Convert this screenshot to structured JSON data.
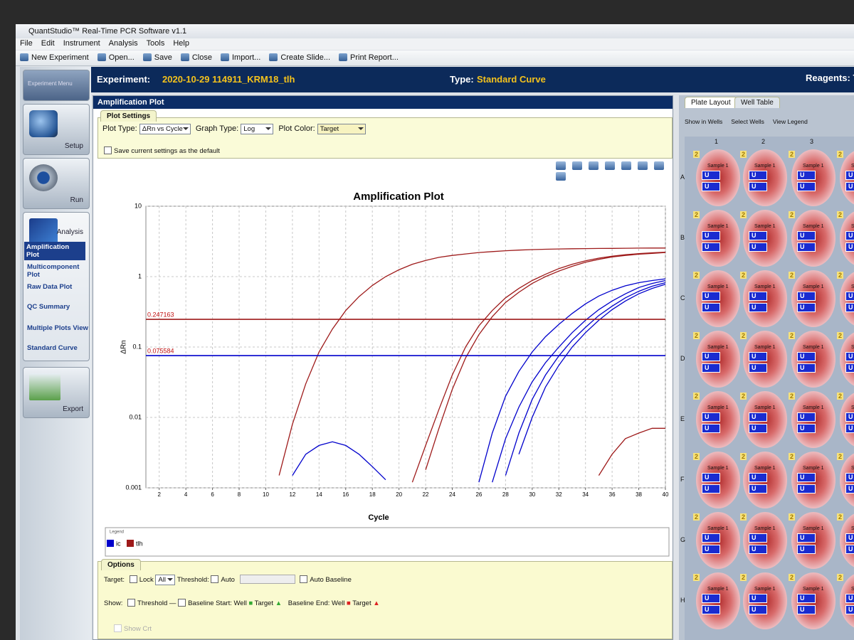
{
  "app": {
    "title": "QuantStudio™ Real-Time PCR Software v1.1",
    "menu": [
      "File",
      "Edit",
      "Instrument",
      "Analysis",
      "Tools",
      "Help"
    ],
    "toolbar": [
      "New Experiment",
      "Open...",
      "Save",
      "Close",
      "Import...",
      "Create Slide...",
      "Print Report..."
    ]
  },
  "sidebar": {
    "header": "Experiment Menu",
    "setup": "Setup",
    "run": "Run",
    "analysis": "Analysis",
    "analysis_items": [
      "Amplification Plot",
      "Multicomponent Plot",
      "Raw Data Plot",
      "QC Summary",
      "Multiple Plots View",
      "Standard Curve"
    ],
    "export": "Export"
  },
  "experiment": {
    "label": "Experiment:",
    "name": "2020-10-29 114911_KRM18_tlh",
    "type_label": "Type:",
    "type": "Standard Curve",
    "reagents": "Reagents: T"
  },
  "panel": {
    "title": "Amplification Plot",
    "settings_tab": "Plot Settings",
    "plot_type_label": "Plot Type:",
    "plot_type": "ΔRn vs Cycle",
    "graph_type_label": "Graph Type:",
    "graph_type": "Log",
    "plot_color_label": "Plot Color:",
    "plot_color": "Target",
    "save_default": "Save current settings as the default"
  },
  "chart_data": {
    "type": "line",
    "title": "Amplification Plot",
    "x_label": "Cycle",
    "y_label": "ΔRn",
    "legend_title": "Legend",
    "x": [
      1,
      2,
      3,
      4,
      5,
      6,
      7,
      8,
      9,
      10,
      11,
      12,
      13,
      14,
      15,
      16,
      17,
      18,
      19,
      20,
      21,
      22,
      23,
      24,
      25,
      26,
      27,
      28,
      29,
      30,
      31,
      32,
      33,
      34,
      35,
      36,
      37,
      38,
      39,
      40
    ],
    "xlim": [
      1,
      40
    ],
    "xticks": [
      2,
      4,
      6,
      8,
      10,
      12,
      14,
      16,
      18,
      20,
      22,
      24,
      26,
      28,
      30,
      32,
      34,
      36,
      38,
      40
    ],
    "ylim": [
      0.001,
      10
    ],
    "yticks": [
      0.001,
      0.01,
      0.1,
      1,
      10
    ],
    "log_y": true,
    "grid": true,
    "thresholds": [
      {
        "value": 0.247163,
        "color": "#9e1a1a"
      },
      {
        "value": 0.075584,
        "color": "#0000cc"
      }
    ],
    "series": [
      {
        "name": "ic",
        "color": "#0000cc",
        "values": [
          null,
          null,
          null,
          null,
          null,
          null,
          null,
          null,
          null,
          null,
          null,
          null,
          null,
          null,
          null,
          null,
          null,
          null,
          null,
          null,
          null,
          null,
          null,
          null,
          null,
          null,
          0.0012,
          0.005,
          0.014,
          0.032,
          0.06,
          0.1,
          0.16,
          0.24,
          0.34,
          0.45,
          0.57,
          0.7,
          0.8,
          0.88
        ]
      },
      {
        "name": "ic",
        "color": "#0000cc",
        "values": [
          null,
          null,
          null,
          null,
          null,
          null,
          null,
          null,
          null,
          null,
          null,
          null,
          null,
          null,
          null,
          null,
          null,
          null,
          null,
          null,
          null,
          null,
          null,
          null,
          null,
          null,
          null,
          0.0015,
          0.006,
          0.018,
          0.04,
          0.075,
          0.125,
          0.19,
          0.28,
          0.38,
          0.5,
          0.62,
          0.73,
          0.82
        ]
      },
      {
        "name": "ic",
        "color": "#0000cc",
        "values": [
          null,
          null,
          null,
          null,
          null,
          null,
          null,
          null,
          null,
          null,
          null,
          null,
          null,
          null,
          null,
          null,
          null,
          null,
          null,
          null,
          null,
          null,
          null,
          null,
          null,
          null,
          null,
          null,
          0.003,
          0.01,
          0.027,
          0.055,
          0.1,
          0.16,
          0.24,
          0.34,
          0.45,
          0.57,
          0.68,
          0.78
        ]
      },
      {
        "name": "ic",
        "color": "#0000cc",
        "values": [
          null,
          null,
          null,
          null,
          null,
          null,
          null,
          null,
          null,
          null,
          null,
          null,
          null,
          null,
          null,
          null,
          null,
          null,
          null,
          null,
          null,
          null,
          null,
          null,
          null,
          0.0012,
          0.006,
          0.02,
          0.045,
          0.085,
          0.14,
          0.21,
          0.3,
          0.41,
          0.53,
          0.64,
          0.74,
          0.82,
          0.88,
          0.93
        ]
      },
      {
        "name": "ic",
        "color": "#0000cc",
        "values": [
          null,
          null,
          null,
          null,
          null,
          null,
          null,
          null,
          null,
          null,
          null,
          0.0015,
          0.003,
          0.004,
          0.0045,
          0.004,
          0.003,
          0.002,
          0.0013,
          null,
          null,
          null,
          null,
          null,
          null,
          null,
          null,
          null,
          null,
          null,
          null,
          null,
          null,
          null,
          null,
          null,
          null,
          null,
          null,
          null
        ]
      },
      {
        "name": "tlh",
        "color": "#9e1a1a",
        "values": [
          null,
          null,
          null,
          null,
          null,
          null,
          null,
          null,
          null,
          null,
          0.0015,
          0.008,
          0.03,
          0.085,
          0.18,
          0.33,
          0.52,
          0.75,
          1.0,
          1.25,
          1.5,
          1.7,
          1.88,
          2.0,
          2.1,
          2.2,
          2.27,
          2.33,
          2.38,
          2.42,
          2.45,
          2.47,
          2.49,
          2.5,
          2.51,
          2.52,
          2.53,
          2.54,
          2.55,
          2.55
        ]
      },
      {
        "name": "tlh",
        "color": "#9e1a1a",
        "values": [
          null,
          null,
          null,
          null,
          null,
          null,
          null,
          null,
          null,
          null,
          null,
          null,
          null,
          null,
          null,
          null,
          null,
          null,
          null,
          null,
          0.0012,
          0.004,
          0.013,
          0.04,
          0.1,
          0.2,
          0.33,
          0.5,
          0.68,
          0.88,
          1.08,
          1.3,
          1.5,
          1.68,
          1.83,
          1.95,
          2.05,
          2.12,
          2.18,
          2.22
        ]
      },
      {
        "name": "tlh",
        "color": "#9e1a1a",
        "values": [
          null,
          null,
          null,
          null,
          null,
          null,
          null,
          null,
          null,
          null,
          null,
          null,
          null,
          null,
          null,
          null,
          null,
          null,
          null,
          null,
          null,
          0.0018,
          0.007,
          0.025,
          0.07,
          0.15,
          0.27,
          0.43,
          0.6,
          0.8,
          1.0,
          1.2,
          1.4,
          1.6,
          1.76,
          1.9,
          2.0,
          2.08,
          2.14,
          2.2
        ]
      },
      {
        "name": "tlh",
        "color": "#9e1a1a",
        "values": [
          null,
          null,
          null,
          null,
          null,
          null,
          null,
          null,
          null,
          null,
          null,
          null,
          null,
          null,
          null,
          null,
          null,
          null,
          null,
          null,
          null,
          null,
          null,
          null,
          null,
          null,
          null,
          null,
          null,
          null,
          null,
          null,
          null,
          null,
          0.0015,
          0.003,
          0.005,
          0.006,
          0.007,
          0.007
        ]
      }
    ]
  },
  "options": {
    "title": "Options",
    "target_label": "Target:",
    "lock": "Lock",
    "target": "All",
    "threshold_label": "Threshold:",
    "auto": "Auto",
    "auto_baseline": "Auto Baseline",
    "show_label": "Show:",
    "threshold": "Threshold",
    "baseline_start": "Baseline Start: Well",
    "start_target": "Target",
    "baseline_end": "Baseline End: Well",
    "end_target": "Target",
    "show_crt": "Show Crt"
  },
  "plate": {
    "tabs": [
      "Plate Layout",
      "Well Table"
    ],
    "toolbar": [
      "Show in Wells",
      "Select Wells",
      "View Legend"
    ],
    "columns": [
      "1",
      "2",
      "3"
    ],
    "rows": [
      "A",
      "B",
      "C",
      "D",
      "E",
      "F",
      "G",
      "H"
    ],
    "well": {
      "count": "2",
      "sample": "Sample 1",
      "task": "U"
    }
  }
}
